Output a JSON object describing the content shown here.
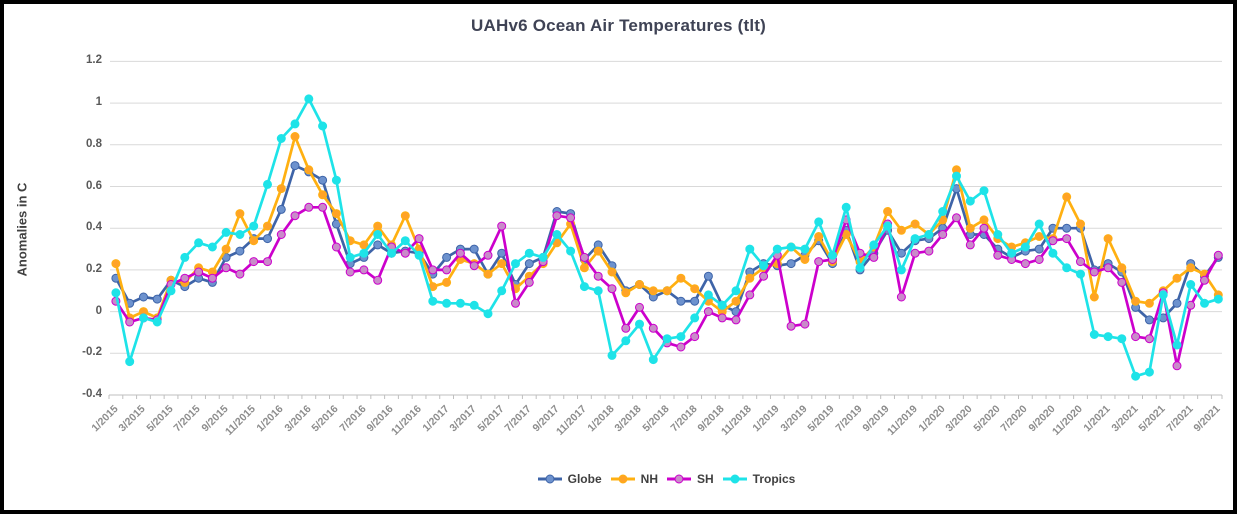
{
  "window": {
    "border_color": "#000000",
    "background": "#FFFFFF"
  },
  "colors": {
    "title_text": "#3F4355",
    "ytick_text": "#595959",
    "xtick_text": "#8C8C8C",
    "axis_title_text": "#404040",
    "legend_text": "#404040",
    "gridline": "#D9D9D9",
    "axis_line": "#BFBFBF"
  },
  "chart_data": {
    "type": "line",
    "title": "UAHv6 Ocean Air Temperatures (tlt)",
    "ylabel": "Anomalies in C",
    "xlabel": "",
    "ylim": [
      -0.4,
      1.2
    ],
    "grid": true,
    "legend_position": "bottom",
    "yticks": [
      1.2,
      1,
      0.8,
      0.6,
      0.4,
      0.2,
      0,
      -0.2,
      -0.4
    ],
    "ytick_labels": [
      "1.2",
      "1",
      "0.8",
      "0.6",
      "0.4",
      "0.2",
      "0",
      "-0.2",
      "-0.4"
    ],
    "xtick_labels": [
      "1/2015",
      "3/2015",
      "5/2015",
      "7/2015",
      "9/2015",
      "11/2015",
      "1/2016",
      "3/2016",
      "5/2016",
      "7/2016",
      "9/2016",
      "11/2016",
      "1/2017",
      "3/2017",
      "5/2017",
      "7/2017",
      "9/2017",
      "11/2017",
      "1/2018",
      "3/2018",
      "5/2018",
      "7/2018",
      "9/2018",
      "11/2018",
      "1/2019",
      "3/2019",
      "5/2019",
      "7/2019",
      "9/2019",
      "11/2019",
      "1/2020",
      "3/2020",
      "5/2020",
      "7/2020",
      "9/2020",
      "11/2020",
      "1/2021",
      "3/2021",
      "5/2021",
      "7/2021",
      "9/2021"
    ],
    "x": [
      "1/2015",
      "2/2015",
      "3/2015",
      "4/2015",
      "5/2015",
      "6/2015",
      "7/2015",
      "8/2015",
      "9/2015",
      "10/2015",
      "11/2015",
      "12/2015",
      "1/2016",
      "2/2016",
      "3/2016",
      "4/2016",
      "5/2016",
      "6/2016",
      "7/2016",
      "8/2016",
      "9/2016",
      "10/2016",
      "11/2016",
      "12/2016",
      "1/2017",
      "2/2017",
      "3/2017",
      "4/2017",
      "5/2017",
      "6/2017",
      "7/2017",
      "8/2017",
      "9/2017",
      "10/2017",
      "11/2017",
      "12/2017",
      "1/2018",
      "2/2018",
      "3/2018",
      "4/2018",
      "5/2018",
      "6/2018",
      "7/2018",
      "8/2018",
      "9/2018",
      "10/2018",
      "11/2018",
      "12/2018",
      "1/2019",
      "2/2019",
      "3/2019",
      "4/2019",
      "5/2019",
      "6/2019",
      "7/2019",
      "8/2019",
      "9/2019",
      "10/2019",
      "11/2019",
      "12/2019",
      "1/2020",
      "2/2020",
      "3/2020",
      "4/2020",
      "5/2020",
      "6/2020",
      "7/2020",
      "8/2020",
      "9/2020",
      "10/2020",
      "11/2020",
      "12/2020",
      "1/2021",
      "2/2021",
      "3/2021",
      "4/2021",
      "5/2021",
      "6/2021",
      "7/2021",
      "8/2021",
      "9/2021"
    ],
    "series": [
      {
        "name": "Globe",
        "line_color": "#3E64A8",
        "marker_color": "#6D92CE",
        "values": [
          0.16,
          0.04,
          0.07,
          0.06,
          0.15,
          0.12,
          0.16,
          0.14,
          0.26,
          0.29,
          0.35,
          0.35,
          0.49,
          0.7,
          0.67,
          0.63,
          0.42,
          0.23,
          0.26,
          0.32,
          0.28,
          0.29,
          0.28,
          0.18,
          0.26,
          0.3,
          0.3,
          0.18,
          0.28,
          0.13,
          0.23,
          0.26,
          0.48,
          0.47,
          0.25,
          0.32,
          0.22,
          0.1,
          0.13,
          0.07,
          0.1,
          0.05,
          0.05,
          0.17,
          0.03,
          0.0,
          0.19,
          0.23,
          0.22,
          0.23,
          0.27,
          0.34,
          0.23,
          0.39,
          0.2,
          0.28,
          0.39,
          0.28,
          0.34,
          0.35,
          0.4,
          0.59,
          0.37,
          0.37,
          0.3,
          0.26,
          0.29,
          0.3,
          0.4,
          0.4,
          0.4,
          0.2,
          0.23,
          0.19,
          0.02,
          -0.04,
          -0.03,
          0.04,
          0.23,
          0.17,
          0.26
        ]
      },
      {
        "name": "NH",
        "line_color": "#FFB011",
        "marker_color": "#FFA326",
        "values": [
          0.23,
          -0.03,
          0.0,
          -0.03,
          0.15,
          0.14,
          0.21,
          0.19,
          0.3,
          0.47,
          0.34,
          0.41,
          0.59,
          0.84,
          0.68,
          0.56,
          0.47,
          0.34,
          0.32,
          0.41,
          0.32,
          0.46,
          0.3,
          0.12,
          0.14,
          0.25,
          0.23,
          0.18,
          0.23,
          0.11,
          0.17,
          0.23,
          0.33,
          0.42,
          0.21,
          0.29,
          0.19,
          0.09,
          0.13,
          0.1,
          0.1,
          0.16,
          0.11,
          0.05,
          0.0,
          0.05,
          0.16,
          0.21,
          0.23,
          0.31,
          0.25,
          0.36,
          0.24,
          0.37,
          0.24,
          0.31,
          0.48,
          0.39,
          0.42,
          0.37,
          0.44,
          0.68,
          0.4,
          0.44,
          0.35,
          0.31,
          0.33,
          0.36,
          0.35,
          0.55,
          0.42,
          0.07,
          0.35,
          0.21,
          0.05,
          0.04,
          0.1,
          0.16,
          0.21,
          0.18,
          0.08
        ]
      },
      {
        "name": "SH",
        "line_color": "#CC00CC",
        "marker_color": "#C98BC9",
        "values": [
          0.05,
          -0.05,
          -0.03,
          -0.04,
          0.13,
          0.16,
          0.19,
          0.16,
          0.21,
          0.18,
          0.24,
          0.24,
          0.37,
          0.46,
          0.5,
          0.5,
          0.31,
          0.19,
          0.2,
          0.15,
          0.31,
          0.28,
          0.35,
          0.2,
          0.2,
          0.28,
          0.22,
          0.27,
          0.41,
          0.04,
          0.14,
          0.24,
          0.46,
          0.45,
          0.26,
          0.17,
          0.11,
          -0.08,
          0.02,
          -0.08,
          -0.15,
          -0.17,
          -0.12,
          0.0,
          -0.03,
          -0.04,
          0.08,
          0.17,
          0.27,
          -0.07,
          -0.06,
          0.24,
          0.25,
          0.44,
          0.28,
          0.26,
          0.42,
          0.07,
          0.28,
          0.29,
          0.37,
          0.45,
          0.32,
          0.4,
          0.27,
          0.25,
          0.23,
          0.25,
          0.34,
          0.35,
          0.24,
          0.19,
          0.21,
          0.14,
          -0.12,
          -0.13,
          0.09,
          -0.26,
          0.03,
          0.15,
          0.27
        ]
      },
      {
        "name": "Tropics",
        "line_color": "#1EE3E8",
        "marker_color": "#1EE3E8",
        "values": [
          0.09,
          -0.24,
          -0.03,
          -0.05,
          0.1,
          0.26,
          0.33,
          0.31,
          0.38,
          0.37,
          0.41,
          0.61,
          0.83,
          0.9,
          1.02,
          0.89,
          0.63,
          0.26,
          0.28,
          0.37,
          0.28,
          0.34,
          0.27,
          0.05,
          0.04,
          0.04,
          0.03,
          -0.01,
          0.1,
          0.23,
          0.28,
          0.26,
          0.37,
          0.29,
          0.12,
          0.1,
          -0.21,
          -0.14,
          -0.06,
          -0.23,
          -0.13,
          -0.12,
          -0.03,
          0.08,
          0.03,
          0.1,
          0.3,
          0.22,
          0.3,
          0.31,
          0.3,
          0.43,
          0.27,
          0.5,
          0.21,
          0.32,
          0.41,
          0.2,
          0.35,
          0.37,
          0.48,
          0.65,
          0.53,
          0.58,
          0.37,
          0.28,
          0.31,
          0.42,
          0.28,
          0.21,
          0.18,
          -0.11,
          -0.12,
          -0.13,
          -0.31,
          -0.29,
          0.08,
          -0.16,
          0.13,
          0.04,
          0.06
        ]
      }
    ],
    "legend": [
      "Globe",
      "NH",
      "SH",
      "Tropics"
    ]
  }
}
